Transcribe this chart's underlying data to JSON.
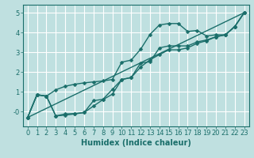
{
  "background_color": "#bfe0e0",
  "grid_color": "#ffffff",
  "line_color": "#1a6e6a",
  "xlabel": "Humidex (Indice chaleur)",
  "xlim": [
    -0.5,
    23.5
  ],
  "ylim": [
    -0.75,
    5.4
  ],
  "xticks": [
    0,
    1,
    2,
    3,
    4,
    5,
    6,
    7,
    8,
    9,
    10,
    11,
    12,
    13,
    14,
    15,
    16,
    17,
    18,
    19,
    20,
    21,
    22,
    23
  ],
  "yticks": [
    0,
    1,
    2,
    3,
    4,
    5
  ],
  "ytick_labels": [
    "-0",
    "1",
    "2",
    "3",
    "4",
    "5"
  ],
  "line1_x": [
    0,
    1,
    2,
    3,
    4,
    5,
    6,
    7,
    8,
    9,
    10,
    11,
    12,
    13,
    14,
    15,
    16,
    17,
    18,
    19,
    20,
    21,
    22,
    23
  ],
  "line1_y": [
    -0.3,
    0.85,
    0.78,
    1.1,
    1.28,
    1.38,
    1.45,
    1.5,
    1.55,
    1.62,
    2.5,
    2.6,
    3.15,
    3.9,
    4.38,
    4.45,
    4.45,
    4.05,
    4.1,
    3.82,
    3.88,
    3.88,
    4.3,
    5.0
  ],
  "line2_x": [
    0,
    1,
    2,
    3,
    4,
    5,
    6,
    7,
    8,
    9,
    10,
    11,
    12,
    13,
    14,
    15,
    16,
    17,
    18,
    19,
    20,
    21,
    22,
    23
  ],
  "line2_y": [
    -0.3,
    0.85,
    0.78,
    -0.22,
    -0.18,
    -0.12,
    -0.05,
    0.28,
    0.6,
    0.88,
    1.62,
    1.72,
    2.25,
    2.62,
    2.88,
    3.12,
    3.12,
    3.22,
    3.45,
    3.58,
    3.78,
    3.88,
    4.3,
    5.0
  ],
  "line3_x": [
    0,
    1,
    2,
    3,
    4,
    5,
    6,
    7,
    8,
    9,
    10,
    11,
    12,
    13,
    14,
    15,
    16,
    17,
    18,
    19,
    20,
    21,
    22,
    23
  ],
  "line3_y": [
    -0.3,
    0.85,
    0.78,
    -0.22,
    -0.12,
    -0.1,
    -0.05,
    0.55,
    0.62,
    1.12,
    1.62,
    1.72,
    2.45,
    2.52,
    3.22,
    3.32,
    3.32,
    3.32,
    3.52,
    3.62,
    3.78,
    3.88,
    4.3,
    5.0
  ],
  "line4_x": [
    0,
    23
  ],
  "line4_y": [
    -0.3,
    5.0
  ],
  "marker": "D",
  "markersize": 2.5,
  "linewidth": 1.0,
  "font_size_label": 7,
  "font_size_tick": 6
}
